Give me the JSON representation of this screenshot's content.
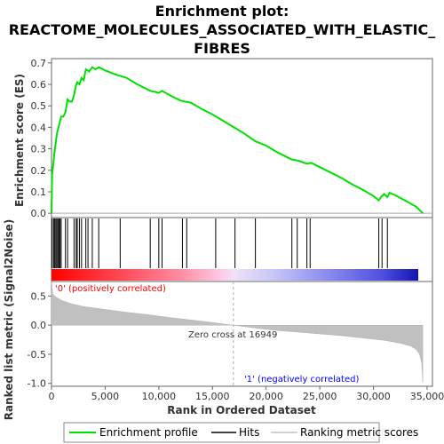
{
  "chart_data": {
    "type": "line",
    "title_lines": [
      "Enrichment plot:",
      "REACTOME_MOLECULES_ASSOCIATED_WITH_ELASTIC_",
      "FIBRES"
    ],
    "xlabel": "Rank in Ordered Dataset",
    "ylabel_top": "Enrichment score (ES)",
    "ylabel_bottom": "Ranked list metric (Signal2Noise)",
    "xlim": [
      0,
      35500
    ],
    "x_ticks": [
      0,
      5000,
      10000,
      15000,
      20000,
      25000,
      30000,
      35000
    ],
    "x_tick_labels": [
      "0",
      "5,000",
      "10,000",
      "15,000",
      "20,000",
      "25,000",
      "30,000",
      "35,000"
    ],
    "es_ylim": [
      -0.02,
      0.72
    ],
    "es_ticks": [
      0.0,
      0.1,
      0.2,
      0.3,
      0.4,
      0.5,
      0.6,
      0.7
    ],
    "es_tick_labels": [
      "0.0",
      "0.1",
      "0.2",
      "0.3",
      "0.4",
      "0.5",
      "0.6",
      "0.7"
    ],
    "metric_ylim": [
      -1.05,
      0.75
    ],
    "metric_ticks": [
      0.5,
      0.0,
      -0.5,
      -1.0
    ],
    "metric_tick_labels": [
      "0.5",
      "0.0",
      "-0.5",
      "-1.0"
    ],
    "es_curve": [
      [
        0,
        0.0
      ],
      [
        60,
        0.18
      ],
      [
        150,
        0.22
      ],
      [
        250,
        0.27
      ],
      [
        350,
        0.31
      ],
      [
        450,
        0.35
      ],
      [
        550,
        0.38
      ],
      [
        650,
        0.4
      ],
      [
        750,
        0.42
      ],
      [
        900,
        0.45
      ],
      [
        1100,
        0.45
      ],
      [
        1300,
        0.47
      ],
      [
        1500,
        0.53
      ],
      [
        1700,
        0.52
      ],
      [
        1900,
        0.52
      ],
      [
        2100,
        0.55
      ],
      [
        2250,
        0.59
      ],
      [
        2400,
        0.61
      ],
      [
        2600,
        0.6
      ],
      [
        2800,
        0.63
      ],
      [
        3000,
        0.62
      ],
      [
        3200,
        0.67
      ],
      [
        3500,
        0.66
      ],
      [
        3800,
        0.68
      ],
      [
        4100,
        0.67
      ],
      [
        4400,
        0.68
      ],
      [
        5000,
        0.665
      ],
      [
        5500,
        0.655
      ],
      [
        6000,
        0.645
      ],
      [
        6400,
        0.64
      ],
      [
        7000,
        0.63
      ],
      [
        8000,
        0.6
      ],
      [
        9200,
        0.57
      ],
      [
        9700,
        0.565
      ],
      [
        10000,
        0.56
      ],
      [
        10300,
        0.57
      ],
      [
        11000,
        0.55
      ],
      [
        12000,
        0.525
      ],
      [
        12400,
        0.52
      ],
      [
        13000,
        0.515
      ],
      [
        14000,
        0.485
      ],
      [
        15000,
        0.46
      ],
      [
        16000,
        0.43
      ],
      [
        17000,
        0.4
      ],
      [
        18000,
        0.37
      ],
      [
        19000,
        0.335
      ],
      [
        20000,
        0.315
      ],
      [
        21000,
        0.285
      ],
      [
        22000,
        0.26
      ],
      [
        22400,
        0.25
      ],
      [
        23000,
        0.245
      ],
      [
        23800,
        0.23
      ],
      [
        24200,
        0.235
      ],
      [
        25000,
        0.215
      ],
      [
        26000,
        0.19
      ],
      [
        27000,
        0.165
      ],
      [
        28000,
        0.135
      ],
      [
        29000,
        0.11
      ],
      [
        30000,
        0.08
      ],
      [
        30500,
        0.06
      ],
      [
        30700,
        0.075
      ],
      [
        31000,
        0.09
      ],
      [
        31300,
        0.075
      ],
      [
        31500,
        0.095
      ],
      [
        32000,
        0.085
      ],
      [
        33000,
        0.058
      ],
      [
        34000,
        0.03
      ],
      [
        34600,
        0.0
      ]
    ],
    "hits": [
      60,
      200,
      300,
      400,
      500,
      600,
      700,
      800,
      900,
      1300,
      1500,
      2100,
      2300,
      2400,
      2600,
      2800,
      3200,
      3400,
      3800,
      4400,
      6400,
      9200,
      10000,
      10300,
      12200,
      12600,
      15300,
      17100,
      19000,
      22400,
      22900,
      23800,
      24100,
      30500,
      30800,
      31300
    ],
    "metric_curve": [
      [
        0,
        0.75
      ],
      [
        100,
        0.55
      ],
      [
        300,
        0.5
      ],
      [
        600,
        0.46
      ],
      [
        1000,
        0.42
      ],
      [
        2000,
        0.36
      ],
      [
        3000,
        0.32
      ],
      [
        5000,
        0.27
      ],
      [
        7000,
        0.22
      ],
      [
        9000,
        0.18
      ],
      [
        11000,
        0.13
      ],
      [
        13000,
        0.09
      ],
      [
        15000,
        0.045
      ],
      [
        16949,
        0.0
      ],
      [
        19000,
        -0.05
      ],
      [
        21000,
        -0.09
      ],
      [
        23000,
        -0.12
      ],
      [
        25000,
        -0.15
      ],
      [
        27000,
        -0.18
      ],
      [
        29000,
        -0.22
      ],
      [
        31000,
        -0.26
      ],
      [
        32500,
        -0.31
      ],
      [
        33500,
        -0.36
      ],
      [
        34000,
        -0.42
      ],
      [
        34300,
        -0.5
      ],
      [
        34500,
        -0.65
      ],
      [
        34600,
        -0.98
      ]
    ],
    "zero_cross_x": 16949,
    "zero_cross_label": "Zero cross at 16949",
    "positive_label": "'0' (positively correlated)",
    "negative_label": "'1' (negatively correlated)",
    "legend": [
      "Enrichment profile",
      "Hits",
      "Ranking metric scores"
    ],
    "colors": {
      "es_line": "#00e000",
      "hits": "#000000",
      "metric_fill": "#c0c0c0",
      "positive_text": "#ff0000",
      "negative_text": "#0000ff",
      "zero_cross_line": "#aaaaaa"
    }
  }
}
